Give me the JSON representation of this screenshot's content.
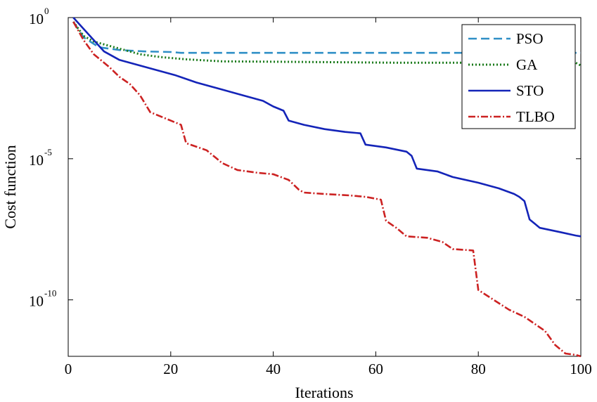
{
  "chart_data": {
    "type": "line",
    "xlabel": "Iterations",
    "ylabel": "Cost function",
    "xlim": [
      0,
      100
    ],
    "ylim_log10": [
      -12,
      0
    ],
    "yscale": "log",
    "grid": false,
    "legend_position": "top-right",
    "x_ticks": [
      "0",
      "20",
      "40",
      "60",
      "80",
      "100"
    ],
    "y_ticks": [
      {
        "base": "10",
        "exp": "0",
        "value_log10": 0
      },
      {
        "base": "10",
        "exp": "-5",
        "value_log10": -5
      },
      {
        "base": "10",
        "exp": "-10",
        "value_log10": -10
      }
    ],
    "series": [
      {
        "name": "PSO",
        "color": "#2f8fc6",
        "dash": "12,6",
        "x": [
          1,
          3,
          6,
          10,
          15,
          20,
          22,
          30,
          50,
          70,
          90,
          100
        ],
        "log10_y": [
          -0.15,
          -0.7,
          -1.05,
          -1.15,
          -1.2,
          -1.22,
          -1.25,
          -1.25,
          -1.25,
          -1.25,
          -1.25,
          -1.25
        ]
      },
      {
        "name": "GA",
        "color": "#1a7a1a",
        "dash": "2,3",
        "x": [
          1,
          3,
          5,
          8,
          11,
          14,
          18,
          23,
          30,
          45,
          65,
          99,
          100
        ],
        "log10_y": [
          -0.15,
          -0.65,
          -0.85,
          -1.0,
          -1.15,
          -1.3,
          -1.4,
          -1.48,
          -1.55,
          -1.57,
          -1.6,
          -1.6,
          -1.7
        ]
      },
      {
        "name": "STO",
        "color": "#1424b8",
        "dash": "",
        "x": [
          1,
          3,
          5,
          7,
          10,
          15,
          21,
          25,
          30,
          34,
          38,
          40,
          42,
          43,
          46,
          50,
          54,
          57,
          58,
          62,
          66,
          67,
          68,
          72,
          75,
          80,
          84,
          87,
          88,
          89,
          90,
          92,
          96,
          99,
          100
        ],
        "log10_y": [
          0,
          -0.4,
          -0.8,
          -1.2,
          -1.5,
          -1.75,
          -2.05,
          -2.3,
          -2.55,
          -2.75,
          -2.95,
          -3.15,
          -3.3,
          -3.65,
          -3.8,
          -3.95,
          -4.05,
          -4.1,
          -4.5,
          -4.6,
          -4.75,
          -4.9,
          -5.35,
          -5.45,
          -5.65,
          -5.85,
          -6.05,
          -6.25,
          -6.35,
          -6.5,
          -7.15,
          -7.45,
          -7.6,
          -7.72,
          -7.75
        ]
      },
      {
        "name": "TLBO",
        "color": "#cc2222",
        "dash": "10,3,2,3",
        "x": [
          1,
          3,
          5,
          8,
          10,
          12,
          14,
          16,
          20,
          22,
          23,
          27,
          29,
          30,
          33,
          37,
          40,
          43,
          45,
          46,
          50,
          55,
          58,
          61,
          62,
          64,
          66,
          70,
          73,
          75,
          79,
          80,
          83,
          86,
          89,
          93,
          95,
          97,
          99,
          100
        ],
        "log10_y": [
          -0.15,
          -0.8,
          -1.3,
          -1.75,
          -2.1,
          -2.35,
          -2.75,
          -3.35,
          -3.65,
          -3.8,
          -4.45,
          -4.7,
          -5.0,
          -5.15,
          -5.4,
          -5.5,
          -5.55,
          -5.75,
          -6.1,
          -6.2,
          -6.25,
          -6.3,
          -6.35,
          -6.45,
          -7.2,
          -7.45,
          -7.75,
          -7.8,
          -7.95,
          -8.2,
          -8.25,
          -9.65,
          -10.0,
          -10.35,
          -10.6,
          -11.1,
          -11.6,
          -11.9,
          -11.95,
          -12.0
        ]
      }
    ]
  }
}
